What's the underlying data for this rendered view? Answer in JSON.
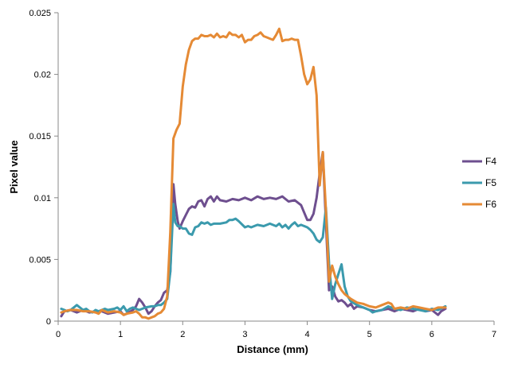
{
  "chart_data": {
    "type": "line",
    "title": "",
    "xlabel": "Distance (mm)",
    "ylabel": "Pixel value",
    "xlim": [
      0,
      7
    ],
    "ylim": [
      0,
      0.025
    ],
    "x_ticks": [
      0,
      1,
      2,
      3,
      4,
      5,
      6,
      7
    ],
    "x_tick_labels": [
      "0",
      "1",
      "2",
      "3",
      "4",
      "5",
      "6",
      "7"
    ],
    "y_ticks": [
      0,
      0.005,
      0.01,
      0.015,
      0.02,
      0.025
    ],
    "y_tick_labels": [
      "0",
      "0.005",
      "0.01",
      "0.015",
      "0.02",
      "0.025"
    ],
    "grid": false,
    "legend_position": "right",
    "series": [
      {
        "name": "F4",
        "color": "#6e4f8f",
        "points": [
          [
            0.05,
            0.0004
          ],
          [
            0.1,
            0.0008
          ],
          [
            0.2,
            0.0009
          ],
          [
            0.3,
            0.0007
          ],
          [
            0.4,
            0.0009
          ],
          [
            0.5,
            0.0007
          ],
          [
            0.6,
            0.0008
          ],
          [
            0.7,
            0.0008
          ],
          [
            0.8,
            0.0006
          ],
          [
            0.9,
            0.0007
          ],
          [
            1.0,
            0.0008
          ],
          [
            1.05,
            0.0005
          ],
          [
            1.1,
            0.0006
          ],
          [
            1.2,
            0.0009
          ],
          [
            1.25,
            0.0012
          ],
          [
            1.3,
            0.0018
          ],
          [
            1.35,
            0.0015
          ],
          [
            1.4,
            0.0011
          ],
          [
            1.45,
            0.0006
          ],
          [
            1.5,
            0.0008
          ],
          [
            1.55,
            0.0012
          ],
          [
            1.6,
            0.0015
          ],
          [
            1.65,
            0.0017
          ],
          [
            1.7,
            0.0023
          ],
          [
            1.75,
            0.0025
          ],
          [
            1.8,
            0.004
          ],
          [
            1.85,
            0.0111
          ],
          [
            1.88,
            0.0095
          ],
          [
            1.92,
            0.0081
          ],
          [
            1.95,
            0.0075
          ],
          [
            2.0,
            0.0081
          ],
          [
            2.05,
            0.0086
          ],
          [
            2.1,
            0.0091
          ],
          [
            2.15,
            0.0093
          ],
          [
            2.2,
            0.0092
          ],
          [
            2.25,
            0.0097
          ],
          [
            2.3,
            0.0098
          ],
          [
            2.35,
            0.0093
          ],
          [
            2.4,
            0.0099
          ],
          [
            2.45,
            0.0101
          ],
          [
            2.5,
            0.0097
          ],
          [
            2.55,
            0.0101
          ],
          [
            2.6,
            0.0098
          ],
          [
            2.7,
            0.0097
          ],
          [
            2.8,
            0.0099
          ],
          [
            2.9,
            0.0098
          ],
          [
            3.0,
            0.01
          ],
          [
            3.1,
            0.0098
          ],
          [
            3.2,
            0.0101
          ],
          [
            3.3,
            0.0099
          ],
          [
            3.4,
            0.01
          ],
          [
            3.5,
            0.0099
          ],
          [
            3.6,
            0.0101
          ],
          [
            3.7,
            0.0097
          ],
          [
            3.8,
            0.0098
          ],
          [
            3.9,
            0.0094
          ],
          [
            4.0,
            0.0082
          ],
          [
            4.05,
            0.0082
          ],
          [
            4.1,
            0.0087
          ],
          [
            4.15,
            0.01
          ],
          [
            4.2,
            0.012
          ],
          [
            4.25,
            0.0137
          ],
          [
            4.3,
            0.008
          ],
          [
            4.35,
            0.0025
          ],
          [
            4.4,
            0.0028
          ],
          [
            4.45,
            0.002
          ],
          [
            4.5,
            0.0016
          ],
          [
            4.55,
            0.0017
          ],
          [
            4.6,
            0.0015
          ],
          [
            4.65,
            0.0012
          ],
          [
            4.7,
            0.0014
          ],
          [
            4.75,
            0.001
          ],
          [
            4.8,
            0.0012
          ],
          [
            4.9,
            0.0011
          ],
          [
            5.0,
            0.0009
          ],
          [
            5.1,
            0.0008
          ],
          [
            5.2,
            0.0009
          ],
          [
            5.3,
            0.001
          ],
          [
            5.4,
            0.0008
          ],
          [
            5.5,
            0.001
          ],
          [
            5.6,
            0.0009
          ],
          [
            5.7,
            0.0008
          ],
          [
            5.8,
            0.001
          ],
          [
            5.9,
            0.0008
          ],
          [
            6.0,
            0.0009
          ],
          [
            6.1,
            0.0005
          ],
          [
            6.15,
            0.0008
          ],
          [
            6.22,
            0.001
          ]
        ]
      },
      {
        "name": "F5",
        "color": "#3b9aad",
        "points": [
          [
            0.05,
            0.001
          ],
          [
            0.1,
            0.0009
          ],
          [
            0.15,
            0.0008
          ],
          [
            0.2,
            0.0009
          ],
          [
            0.25,
            0.0011
          ],
          [
            0.3,
            0.0013
          ],
          [
            0.35,
            0.0011
          ],
          [
            0.4,
            0.0009
          ],
          [
            0.45,
            0.001
          ],
          [
            0.5,
            0.0008
          ],
          [
            0.55,
            0.0007
          ],
          [
            0.6,
            0.0009
          ],
          [
            0.65,
            0.0008
          ],
          [
            0.7,
            0.0009
          ],
          [
            0.75,
            0.001
          ],
          [
            0.8,
            0.0009
          ],
          [
            0.9,
            0.001
          ],
          [
            0.95,
            0.0011
          ],
          [
            1.0,
            0.0009
          ],
          [
            1.05,
            0.0012
          ],
          [
            1.1,
            0.0008
          ],
          [
            1.15,
            0.001
          ],
          [
            1.2,
            0.0011
          ],
          [
            1.3,
            0.0009
          ],
          [
            1.35,
            0.001
          ],
          [
            1.4,
            0.0011
          ],
          [
            1.5,
            0.0012
          ],
          [
            1.55,
            0.0012
          ],
          [
            1.6,
            0.0013
          ],
          [
            1.65,
            0.0013
          ],
          [
            1.7,
            0.0015
          ],
          [
            1.75,
            0.0018
          ],
          [
            1.8,
            0.004
          ],
          [
            1.85,
            0.0095
          ],
          [
            1.88,
            0.008
          ],
          [
            1.92,
            0.0077
          ],
          [
            1.95,
            0.0077
          ],
          [
            2.0,
            0.0075
          ],
          [
            2.05,
            0.0075
          ],
          [
            2.1,
            0.0071
          ],
          [
            2.15,
            0.007
          ],
          [
            2.2,
            0.0076
          ],
          [
            2.25,
            0.0077
          ],
          [
            2.3,
            0.008
          ],
          [
            2.35,
            0.0079
          ],
          [
            2.4,
            0.008
          ],
          [
            2.45,
            0.0078
          ],
          [
            2.5,
            0.0079
          ],
          [
            2.6,
            0.0079
          ],
          [
            2.7,
            0.008
          ],
          [
            2.75,
            0.0082
          ],
          [
            2.8,
            0.0082
          ],
          [
            2.85,
            0.0083
          ],
          [
            2.9,
            0.0081
          ],
          [
            3.0,
            0.0076
          ],
          [
            3.05,
            0.0077
          ],
          [
            3.1,
            0.0076
          ],
          [
            3.2,
            0.0078
          ],
          [
            3.3,
            0.0077
          ],
          [
            3.4,
            0.0079
          ],
          [
            3.5,
            0.0077
          ],
          [
            3.55,
            0.0079
          ],
          [
            3.6,
            0.0076
          ],
          [
            3.65,
            0.0078
          ],
          [
            3.7,
            0.0075
          ],
          [
            3.75,
            0.0078
          ],
          [
            3.8,
            0.008
          ],
          [
            3.85,
            0.0077
          ],
          [
            3.9,
            0.0078
          ],
          [
            4.0,
            0.0076
          ],
          [
            4.05,
            0.0074
          ],
          [
            4.1,
            0.0071
          ],
          [
            4.15,
            0.0066
          ],
          [
            4.2,
            0.0064
          ],
          [
            4.25,
            0.0068
          ],
          [
            4.3,
            0.0092
          ],
          [
            4.35,
            0.0047
          ],
          [
            4.4,
            0.0018
          ],
          [
            4.45,
            0.003
          ],
          [
            4.5,
            0.0038
          ],
          [
            4.55,
            0.0046
          ],
          [
            4.6,
            0.0028
          ],
          [
            4.65,
            0.002
          ],
          [
            4.7,
            0.0016
          ],
          [
            4.8,
            0.0013
          ],
          [
            4.9,
            0.0011
          ],
          [
            5.0,
            0.0009
          ],
          [
            5.05,
            0.0007
          ],
          [
            5.1,
            0.0008
          ],
          [
            5.2,
            0.0009
          ],
          [
            5.3,
            0.0012
          ],
          [
            5.4,
            0.001
          ],
          [
            5.5,
            0.0009
          ],
          [
            5.6,
            0.0011
          ],
          [
            5.7,
            0.001
          ],
          [
            5.8,
            0.0009
          ],
          [
            5.9,
            0.0008
          ],
          [
            6.0,
            0.001
          ],
          [
            6.1,
            0.0009
          ],
          [
            6.22,
            0.0012
          ]
        ]
      },
      {
        "name": "F6",
        "color": "#e58a35",
        "points": [
          [
            0.05,
            0.0007
          ],
          [
            0.1,
            0.0008
          ],
          [
            0.2,
            0.0009
          ],
          [
            0.3,
            0.0009
          ],
          [
            0.4,
            0.0008
          ],
          [
            0.5,
            0.0008
          ],
          [
            0.6,
            0.0007
          ],
          [
            0.65,
            0.0006
          ],
          [
            0.7,
            0.0009
          ],
          [
            0.8,
            0.0007
          ],
          [
            0.9,
            0.0008
          ],
          [
            1.0,
            0.0007
          ],
          [
            1.05,
            0.0005
          ],
          [
            1.1,
            0.0006
          ],
          [
            1.2,
            0.0007
          ],
          [
            1.25,
            0.0008
          ],
          [
            1.3,
            0.0006
          ],
          [
            1.35,
            0.0003
          ],
          [
            1.4,
            0.0003
          ],
          [
            1.45,
            0.0002
          ],
          [
            1.5,
            0.0003
          ],
          [
            1.55,
            0.0004
          ],
          [
            1.6,
            0.0006
          ],
          [
            1.65,
            0.0007
          ],
          [
            1.7,
            0.001
          ],
          [
            1.75,
            0.002
          ],
          [
            1.8,
            0.0072
          ],
          [
            1.85,
            0.0148
          ],
          [
            1.9,
            0.0155
          ],
          [
            1.95,
            0.016
          ],
          [
            2.0,
            0.019
          ],
          [
            2.05,
            0.0208
          ],
          [
            2.1,
            0.022
          ],
          [
            2.15,
            0.0227
          ],
          [
            2.2,
            0.0229
          ],
          [
            2.25,
            0.0229
          ],
          [
            2.3,
            0.0232
          ],
          [
            2.35,
            0.0231
          ],
          [
            2.4,
            0.0231
          ],
          [
            2.45,
            0.0232
          ],
          [
            2.5,
            0.023
          ],
          [
            2.55,
            0.0233
          ],
          [
            2.6,
            0.023
          ],
          [
            2.65,
            0.0231
          ],
          [
            2.7,
            0.023
          ],
          [
            2.75,
            0.0234
          ],
          [
            2.8,
            0.0232
          ],
          [
            2.85,
            0.0232
          ],
          [
            2.9,
            0.023
          ],
          [
            2.95,
            0.0232
          ],
          [
            3.0,
            0.0226
          ],
          [
            3.05,
            0.0228
          ],
          [
            3.1,
            0.0228
          ],
          [
            3.15,
            0.0231
          ],
          [
            3.2,
            0.0232
          ],
          [
            3.25,
            0.0234
          ],
          [
            3.3,
            0.0231
          ],
          [
            3.35,
            0.023
          ],
          [
            3.4,
            0.0229
          ],
          [
            3.45,
            0.0228
          ],
          [
            3.5,
            0.0232
          ],
          [
            3.55,
            0.0237
          ],
          [
            3.6,
            0.0227
          ],
          [
            3.65,
            0.0228
          ],
          [
            3.7,
            0.0228
          ],
          [
            3.75,
            0.0229
          ],
          [
            3.8,
            0.0228
          ],
          [
            3.85,
            0.0228
          ],
          [
            3.9,
            0.0215
          ],
          [
            3.95,
            0.02
          ],
          [
            4.0,
            0.0192
          ],
          [
            4.05,
            0.0196
          ],
          [
            4.1,
            0.0206
          ],
          [
            4.15,
            0.0183
          ],
          [
            4.2,
            0.011
          ],
          [
            4.25,
            0.0137
          ],
          [
            4.3,
            0.009
          ],
          [
            4.35,
            0.0032
          ],
          [
            4.4,
            0.0045
          ],
          [
            4.45,
            0.0036
          ],
          [
            4.5,
            0.003
          ],
          [
            4.55,
            0.0025
          ],
          [
            4.6,
            0.0022
          ],
          [
            4.7,
            0.0018
          ],
          [
            4.8,
            0.0015
          ],
          [
            4.9,
            0.0014
          ],
          [
            5.0,
            0.0012
          ],
          [
            5.1,
            0.0011
          ],
          [
            5.2,
            0.0013
          ],
          [
            5.3,
            0.0015
          ],
          [
            5.35,
            0.0014
          ],
          [
            5.4,
            0.001
          ],
          [
            5.5,
            0.0011
          ],
          [
            5.6,
            0.001
          ],
          [
            5.7,
            0.0012
          ],
          [
            5.8,
            0.0011
          ],
          [
            5.9,
            0.001
          ],
          [
            6.0,
            0.0009
          ],
          [
            6.1,
            0.0011
          ],
          [
            6.22,
            0.0011
          ]
        ]
      }
    ]
  }
}
